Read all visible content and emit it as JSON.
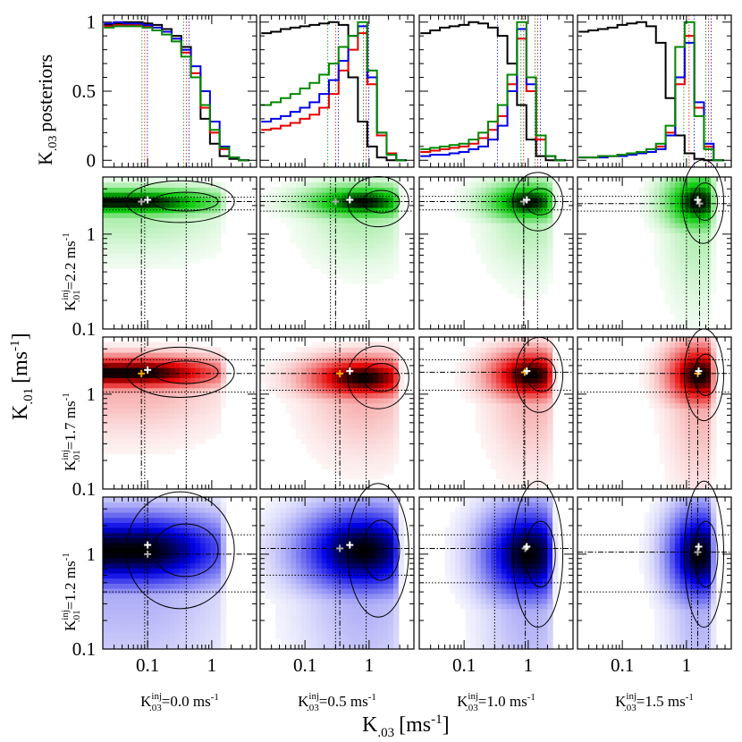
{
  "figure": {
    "x_axis_title": "K",
    "x_axis_title_sub": ".03",
    "x_axis_title_unit": "[ms",
    "x_axis_title_exp": "-1",
    "x_axis_title_close": "]",
    "y_axis_title": "K",
    "y_axis_title_sub": ".01",
    "y_axis_title_unit": "[ms",
    "y_axis_title_exp": "-1",
    "y_axis_title_close": "]",
    "top_row_label": "K",
    "top_row_label_sub": ".03",
    "top_row_label_rest": "posteriors"
  },
  "columns": [
    {
      "label_main": "K",
      "label_sup": "inj",
      "label_sub": ".03",
      "label_rest": "=0.0 ms",
      "label_exp": "-1",
      "injected": 0.0
    },
    {
      "label_main": "K",
      "label_sup": "inj",
      "label_sub": ".03",
      "label_rest": "=0.5 ms",
      "label_exp": "-1",
      "injected": 0.5
    },
    {
      "label_main": "K",
      "label_sup": "inj",
      "label_sub": ".03",
      "label_rest": "=1.0 ms",
      "label_exp": "-1",
      "injected": 1.0
    },
    {
      "label_main": "K",
      "label_sup": "inj",
      "label_sub": ".03",
      "label_rest": "=1.5 ms",
      "label_exp": "-1",
      "injected": 1.5
    }
  ],
  "rows": [
    {
      "label_main": "K",
      "label_sup": "inj",
      "label_sub": ".01",
      "label_rest": "=2.2 ms",
      "label_exp": "-1",
      "color": "#00c800",
      "injected": 2.2
    },
    {
      "label_main": "K",
      "label_sup": "inj",
      "label_sub": ".01",
      "label_rest": "=1.7 ms",
      "label_exp": "-1",
      "color": "#e60000",
      "injected": 1.7
    },
    {
      "label_main": "K",
      "label_sup": "inj",
      "label_sub": ".01",
      "label_rest": "=1.2 ms",
      "label_exp": "-1",
      "color": "#0000e6",
      "injected": 1.2
    }
  ],
  "x_ticks": [
    "0.1",
    "1"
  ],
  "y_ticks_top": [
    "0",
    "0.5",
    "1"
  ],
  "y_ticks_heat": [
    "0.1",
    "1"
  ],
  "colors": {
    "black": "#000000",
    "green": "#008800",
    "red": "#e60000",
    "blue": "#0000e6"
  },
  "chart_data": {
    "type": "heatmap",
    "x_scale": "log",
    "y_scale": "log",
    "x_range": [
      0.02,
      5
    ],
    "y_range": [
      0.1,
      4
    ],
    "top_row_y_range": [
      -0.05,
      1.05
    ],
    "posteriors": [
      {
        "column": "K.03 inj=0.0",
        "bins_x": [
          0.025,
          0.035,
          0.05,
          0.07,
          0.1,
          0.14,
          0.2,
          0.28,
          0.4,
          0.56,
          0.8,
          1.1,
          1.6,
          2.2,
          3.2
        ],
        "black": [
          0.98,
          0.99,
          1.0,
          1.0,
          0.99,
          0.98,
          0.95,
          0.9,
          0.82,
          0.6,
          0.3,
          0.12,
          0.03,
          0.01,
          0.0
        ],
        "red": [
          0.97,
          0.98,
          0.98,
          0.98,
          0.97,
          0.96,
          0.93,
          0.88,
          0.78,
          0.63,
          0.38,
          0.2,
          0.08,
          0.02,
          0.0
        ],
        "green": [
          0.96,
          0.97,
          0.97,
          0.97,
          0.96,
          0.94,
          0.91,
          0.86,
          0.75,
          0.6,
          0.4,
          0.22,
          0.09,
          0.02,
          0.0
        ],
        "blue": [
          0.99,
          1.0,
          0.99,
          0.99,
          0.98,
          0.96,
          0.93,
          0.88,
          0.8,
          0.68,
          0.5,
          0.28,
          0.1,
          0.02,
          0.0
        ]
      },
      {
        "column": "K.03 inj=0.5",
        "bins_x": [
          0.025,
          0.035,
          0.05,
          0.07,
          0.1,
          0.14,
          0.2,
          0.28,
          0.4,
          0.56,
          0.8,
          1.1,
          1.6,
          2.2,
          3.2
        ],
        "black": [
          0.92,
          0.93,
          0.95,
          0.96,
          0.97,
          0.98,
          0.99,
          1.0,
          0.98,
          0.6,
          0.28,
          0.1,
          0.02,
          0.0,
          0.0
        ],
        "red": [
          0.22,
          0.23,
          0.25,
          0.27,
          0.3,
          0.33,
          0.38,
          0.48,
          0.65,
          0.8,
          0.92,
          0.55,
          0.18,
          0.05,
          0.0
        ],
        "green": [
          0.4,
          0.42,
          0.45,
          0.48,
          0.52,
          0.56,
          0.62,
          0.7,
          0.82,
          0.9,
          1.0,
          0.65,
          0.2,
          0.04,
          0.0
        ],
        "blue": [
          0.28,
          0.3,
          0.32,
          0.35,
          0.38,
          0.42,
          0.48,
          0.58,
          0.72,
          0.9,
          0.97,
          0.6,
          0.2,
          0.04,
          0.0
        ]
      },
      {
        "column": "K.03 inj=1.0",
        "bins_x": [
          0.025,
          0.035,
          0.05,
          0.07,
          0.1,
          0.14,
          0.2,
          0.28,
          0.4,
          0.56,
          0.8,
          1.1,
          1.6,
          2.2,
          3.2
        ],
        "black": [
          0.92,
          0.94,
          0.96,
          0.97,
          0.98,
          1.0,
          0.99,
          0.96,
          0.9,
          0.7,
          0.4,
          0.15,
          0.03,
          0.0,
          0.0
        ],
        "red": [
          0.06,
          0.07,
          0.08,
          0.09,
          0.1,
          0.12,
          0.16,
          0.22,
          0.32,
          0.55,
          0.88,
          0.5,
          0.15,
          0.03,
          0.0
        ],
        "green": [
          0.08,
          0.09,
          0.1,
          0.11,
          0.12,
          0.15,
          0.2,
          0.28,
          0.4,
          0.62,
          1.0,
          0.6,
          0.18,
          0.03,
          0.0
        ],
        "blue": [
          0.03,
          0.04,
          0.04,
          0.05,
          0.06,
          0.08,
          0.1,
          0.15,
          0.25,
          0.5,
          0.95,
          0.55,
          0.18,
          0.03,
          0.0
        ]
      },
      {
        "column": "K.03 inj=1.5",
        "bins_x": [
          0.025,
          0.035,
          0.05,
          0.07,
          0.1,
          0.14,
          0.2,
          0.28,
          0.4,
          0.56,
          0.8,
          1.1,
          1.6,
          2.2,
          3.2
        ],
        "black": [
          0.93,
          0.94,
          0.95,
          0.96,
          0.98,
          0.99,
          1.0,
          0.97,
          0.85,
          0.45,
          0.18,
          0.05,
          0.01,
          0.0,
          0.0
        ],
        "red": [
          0.02,
          0.02,
          0.03,
          0.03,
          0.04,
          0.05,
          0.06,
          0.08,
          0.1,
          0.2,
          0.55,
          0.9,
          0.38,
          0.1,
          0.0
        ],
        "green": [
          0.02,
          0.02,
          0.03,
          0.03,
          0.04,
          0.05,
          0.06,
          0.08,
          0.12,
          0.25,
          0.82,
          1.0,
          0.32,
          0.08,
          0.0
        ],
        "blue": [
          0.02,
          0.02,
          0.02,
          0.03,
          0.03,
          0.04,
          0.05,
          0.06,
          0.08,
          0.18,
          0.6,
          0.85,
          0.42,
          0.12,
          0.0
        ]
      }
    ],
    "heatmaps": [
      {
        "row": 0,
        "col": 0,
        "peak_x": 0.08,
        "peak_y": 2.2,
        "spread_x": 0.9,
        "spread_y": 0.1,
        "max_x": 1.3,
        "marker_est": [
          0.1,
          2.3
        ],
        "marker_inj": [
          0.08,
          2.2
        ],
        "vlines": [
          0.09,
          0.4
        ],
        "hlines": [
          2.45,
          1.8
        ]
      },
      {
        "row": 0,
        "col": 1,
        "peak_x": 0.8,
        "peak_y": 2.2,
        "spread_x": 0.6,
        "spread_y": 0.12,
        "max_x": 2.4,
        "marker_est": [
          0.5,
          2.3
        ],
        "marker_inj": [
          0.3,
          2.2
        ],
        "vlines": [
          0.25,
          0.9
        ],
        "hlines": [
          2.5,
          1.75
        ]
      },
      {
        "row": 0,
        "col": 2,
        "peak_x": 1.0,
        "peak_y": 2.2,
        "spread_x": 0.45,
        "spread_y": 0.14,
        "max_x": 2.0,
        "marker_est": [
          0.95,
          2.3
        ],
        "marker_inj": [
          0.85,
          2.2
        ],
        "vlines": [
          0.85,
          1.4
        ],
        "hlines": [
          2.5,
          1.8
        ]
      },
      {
        "row": 0,
        "col": 3,
        "peak_x": 1.5,
        "peak_y": 2.2,
        "spread_x": 0.35,
        "spread_y": 0.2,
        "max_x": 2.2,
        "marker_est": [
          1.5,
          2.3
        ],
        "marker_inj": [
          1.6,
          2.1
        ],
        "vlines": [
          1.0,
          2.2
        ],
        "hlines": [
          2.5,
          1.75
        ]
      },
      {
        "row": 1,
        "col": 0,
        "peak_x": 0.08,
        "peak_y": 1.7,
        "spread_x": 0.9,
        "spread_y": 0.12,
        "max_x": 1.3,
        "marker_est": [
          0.1,
          1.8
        ],
        "marker_inj": [
          0.08,
          1.65
        ],
        "vlines": [
          0.09,
          0.4
        ],
        "hlines": [
          2.3,
          1.05
        ]
      },
      {
        "row": 1,
        "col": 1,
        "peak_x": 0.8,
        "peak_y": 1.5,
        "spread_x": 0.6,
        "spread_y": 0.15,
        "max_x": 2.4,
        "marker_est": [
          0.5,
          1.75
        ],
        "marker_inj": [
          0.35,
          1.65
        ],
        "vlines": [
          0.3,
          0.9
        ],
        "hlines": [
          2.3,
          1.1
        ]
      },
      {
        "row": 1,
        "col": 2,
        "peak_x": 1.1,
        "peak_y": 1.6,
        "spread_x": 0.45,
        "spread_y": 0.18,
        "max_x": 2.0,
        "marker_est": [
          0.95,
          1.75
        ],
        "marker_inj": [
          0.88,
          1.7
        ],
        "vlines": [
          0.85,
          1.4
        ],
        "hlines": [
          2.3,
          1.1
        ]
      },
      {
        "row": 1,
        "col": 3,
        "peak_x": 1.6,
        "peak_y": 1.6,
        "spread_x": 0.35,
        "spread_y": 0.22,
        "max_x": 2.2,
        "marker_est": [
          1.55,
          1.75
        ],
        "marker_inj": [
          1.5,
          1.65
        ],
        "vlines": [
          1.1,
          2.2
        ],
        "hlines": [
          2.3,
          1.05
        ]
      },
      {
        "row": 2,
        "col": 0,
        "peak_x": 0.08,
        "peak_y": 1.1,
        "spread_x": 1.0,
        "spread_y": 0.28,
        "max_x": 1.3,
        "marker_est": [
          0.1,
          1.25
        ],
        "marker_inj": [
          0.1,
          1.0
        ],
        "vlines": [
          0.09,
          0.4
        ],
        "hlines": [
          1.6,
          0.4
        ]
      },
      {
        "row": 2,
        "col": 1,
        "peak_x": 0.8,
        "peak_y": 1.1,
        "spread_x": 0.7,
        "spread_y": 0.32,
        "max_x": 2.4,
        "marker_est": [
          0.5,
          1.25
        ],
        "marker_inj": [
          0.35,
          1.15
        ],
        "vlines": [
          0.3,
          0.9
        ],
        "hlines": [
          1.6,
          0.6
        ]
      },
      {
        "row": 2,
        "col": 2,
        "peak_x": 1.0,
        "peak_y": 1.0,
        "spread_x": 0.5,
        "spread_y": 0.35,
        "max_x": 2.0,
        "marker_est": [
          0.95,
          1.2
        ],
        "marker_inj": [
          0.9,
          1.15
        ],
        "vlines": [
          0.3,
          1.4
        ],
        "hlines": [
          1.6,
          0.5
        ]
      },
      {
        "row": 2,
        "col": 3,
        "peak_x": 1.6,
        "peak_y": 1.0,
        "spread_x": 0.35,
        "spread_y": 0.35,
        "max_x": 2.2,
        "marker_est": [
          1.55,
          1.2
        ],
        "marker_inj": [
          1.5,
          1.05
        ],
        "vlines": [
          1.2,
          2.2
        ],
        "hlines": [
          1.6,
          0.4
        ]
      }
    ]
  }
}
